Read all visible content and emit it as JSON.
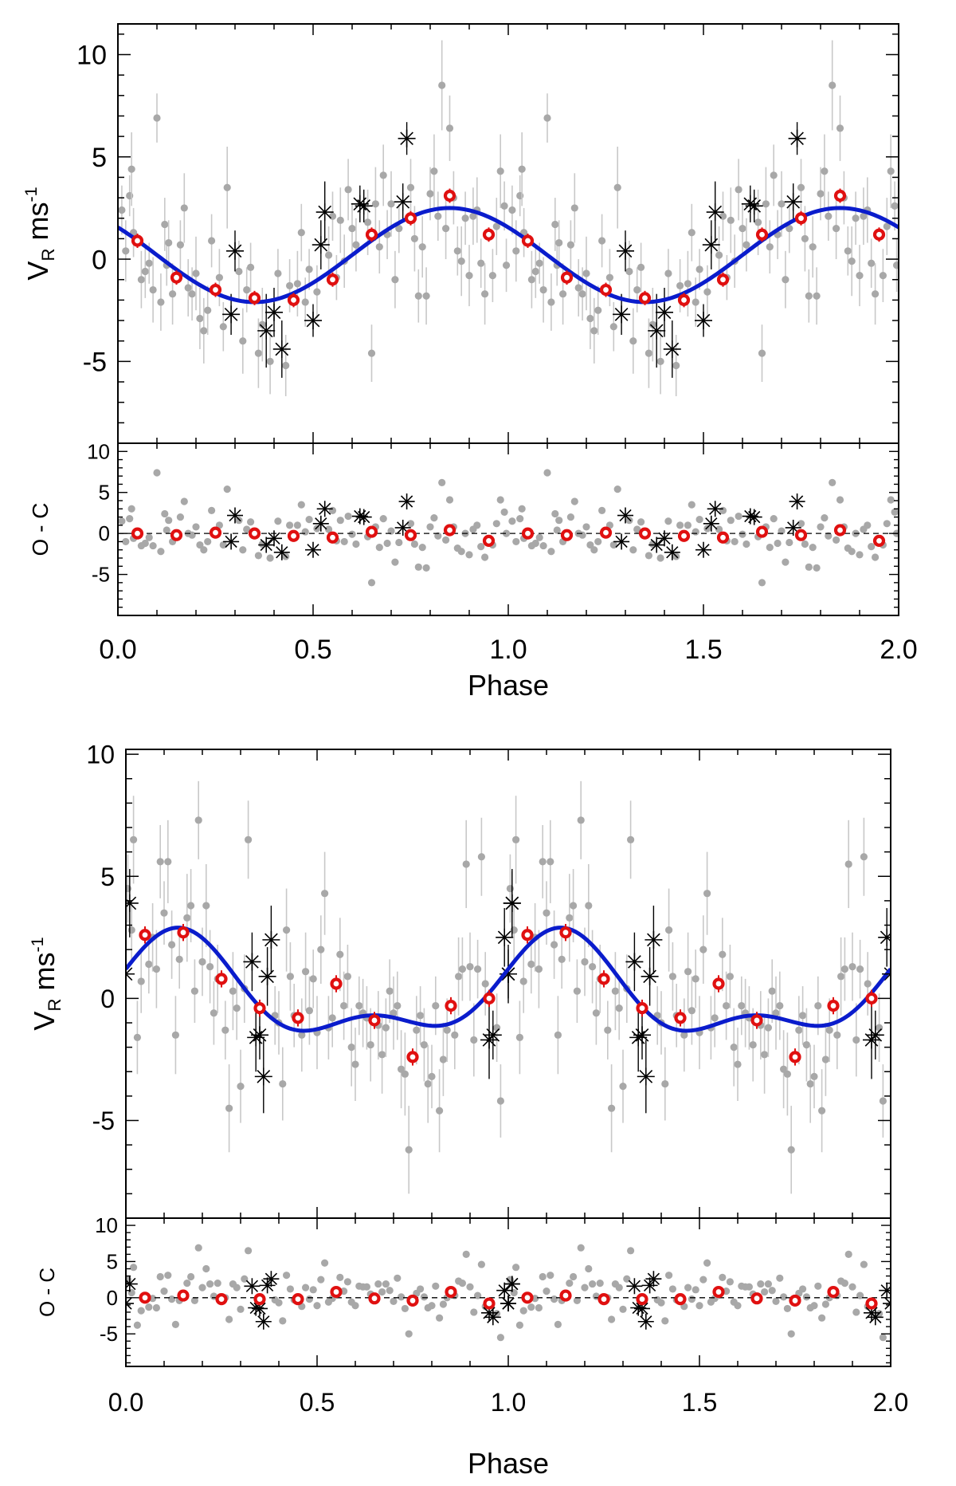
{
  "figure": {
    "description_free": true
  },
  "chart_data": [
    {
      "type": "scatter",
      "panel": "top",
      "xlabel": "Phase",
      "ylabel_main": "V",
      "ylabel_sub": "R",
      "ylabel_unit": " ms",
      "ylabel_sup": "-1",
      "resid_label": "O - C",
      "xlim": [
        0,
        2
      ],
      "ylim": [
        -9,
        11.5
      ],
      "resid_ylim": [
        -10,
        11
      ],
      "xticks": [
        0.0,
        0.5,
        1.0,
        1.5,
        2.0
      ],
      "xtick_labels": [
        "0.0",
        "0.5",
        "1.0",
        "1.5",
        "2.0"
      ],
      "yticks": [
        -5,
        0,
        5,
        10
      ],
      "ytick_labels": [
        "-5",
        "0",
        "5",
        "10"
      ],
      "resid_yticks": [
        -5,
        0,
        5,
        10
      ],
      "resid_ytick_labels": [
        "-5",
        "0",
        "5",
        "10"
      ],
      "model": {
        "name": "Keplerian fit",
        "color": "#0a1ccc",
        "offset": 0.2,
        "harmonics": [
          {
            "amp": 2.3,
            "mult": 1,
            "phase0": 0.6
          }
        ]
      },
      "binned": {
        "color": "#e01010",
        "x": [
          0.05,
          0.15,
          0.25,
          0.35,
          0.45,
          0.55,
          0.65,
          0.75,
          0.85,
          0.95
        ],
        "y": [
          0.9,
          -0.9,
          -1.5,
          -1.9,
          -2.0,
          -1.0,
          1.2,
          2.0,
          3.1,
          1.2
        ],
        "resid": [
          0.0,
          -0.2,
          0.1,
          0.0,
          -0.3,
          -0.5,
          0.2,
          -0.2,
          0.4,
          -0.9
        ]
      },
      "stars": {
        "x": [
          0.29,
          0.3,
          0.38,
          0.4,
          0.42,
          0.5,
          0.52,
          0.53,
          0.62,
          0.63,
          0.73,
          0.74
        ],
        "y": [
          -2.7,
          0.4,
          -3.5,
          -2.6,
          -4.4,
          -3.0,
          0.7,
          2.3,
          2.7,
          2.6,
          2.8,
          5.9
        ],
        "err": [
          1.0,
          1.0,
          1.8,
          1.2,
          1.4,
          0.8,
          1.2,
          1.5,
          0.9,
          0.8,
          0.9,
          0.8
        ],
        "resid": [
          -1.0,
          2.2,
          -1.4,
          -0.6,
          -2.3,
          -2.0,
          1.2,
          3.0,
          2.1,
          2.0,
          0.7,
          3.9
        ]
      },
      "gray": {
        "color": "#a8a8a8",
        "x": [
          0.01,
          0.02,
          0.03,
          0.035,
          0.04,
          0.06,
          0.07,
          0.08,
          0.09,
          0.1,
          0.11,
          0.12,
          0.125,
          0.13,
          0.14,
          0.16,
          0.17,
          0.18,
          0.19,
          0.2,
          0.21,
          0.22,
          0.23,
          0.24,
          0.26,
          0.27,
          0.28,
          0.31,
          0.32,
          0.33,
          0.34,
          0.36,
          0.37,
          0.39,
          0.41,
          0.43,
          0.44,
          0.46,
          0.47,
          0.48,
          0.49,
          0.51,
          0.54,
          0.55,
          0.56,
          0.57,
          0.58,
          0.59,
          0.6,
          0.61,
          0.64,
          0.65,
          0.66,
          0.67,
          0.68,
          0.69,
          0.7,
          0.71,
          0.72,
          0.75,
          0.76,
          0.77,
          0.78,
          0.79,
          0.8,
          0.81,
          0.82,
          0.83,
          0.84,
          0.85,
          0.86,
          0.87,
          0.88,
          0.89,
          0.9,
          0.91,
          0.92,
          0.93,
          0.94,
          0.96,
          0.97,
          0.98,
          0.99,
          0.995
        ],
        "y": [
          2.4,
          0.4,
          3.1,
          4.4,
          1.3,
          -1.0,
          -0.6,
          -0.2,
          -1.5,
          6.9,
          -2.1,
          1.7,
          -0.3,
          0.8,
          -1.7,
          0.7,
          2.5,
          -1.4,
          -1.7,
          -0.7,
          -2.9,
          -3.5,
          -2.5,
          0.9,
          -0.9,
          -3.3,
          3.5,
          -0.6,
          -4.0,
          -1.5,
          -0.4,
          -4.6,
          -3.2,
          -5.0,
          -0.7,
          -5.2,
          -1.3,
          -1.2,
          1.3,
          -2.1,
          -0.5,
          -1.6,
          0.2,
          2.1,
          -0.9,
          1.9,
          -0.1,
          3.4,
          1.5,
          0.7,
          1.8,
          -4.6,
          2.7,
          0.6,
          4.1,
          1.2,
          2.7,
          -1.0,
          1.5,
          3.5,
          1.0,
          -1.8,
          0.6,
          -1.8,
          3.2,
          4.3,
          2.1,
          8.5,
          1.5,
          6.4,
          3.0,
          0.4,
          -0.1,
          2.0,
          -0.8,
          2.1,
          2.4,
          -0.2,
          -1.7,
          -0.8,
          1.6,
          4.3,
          2.6,
          -0.3
        ],
        "resid": [
          1.5,
          -1.0,
          1.8,
          3.0,
          -0.6,
          -1.5,
          -1.2,
          -0.5,
          -1.5,
          7.4,
          -2.2,
          2.4,
          0.4,
          1.6,
          -1.0,
          2.0,
          3.9,
          0.0,
          -0.2,
          0.8,
          -1.4,
          -2.0,
          -1.0,
          2.8,
          1.0,
          -1.4,
          5.4,
          1.6,
          -2.0,
          0.5,
          1.4,
          -2.7,
          -1.3,
          -3.0,
          1.5,
          -2.8,
          1.0,
          1.0,
          3.5,
          0.2,
          1.7,
          0.6,
          0.5,
          2.8,
          -0.9,
          1.6,
          -1.0,
          2.1,
          -0.1,
          -1.3,
          -0.4,
          -6.0,
          0.8,
          -1.7,
          1.8,
          -1.2,
          0.3,
          -3.5,
          -1.1,
          1.2,
          -1.3,
          -4.1,
          -1.7,
          -4.2,
          0.8,
          1.9,
          -0.3,
          6.2,
          -0.8,
          4.1,
          0.8,
          -1.8,
          -2.2,
          0.0,
          -2.6,
          0.5,
          1.0,
          -1.6,
          -2.9,
          -1.4,
          1.2,
          4.1,
          2.6,
          0.0
        ],
        "err": [
          1.2,
          1.5,
          1.0,
          1.8,
          1.2,
          1.4,
          1.3,
          1.0,
          1.6,
          1.2,
          1.4,
          1.3,
          1.0,
          1.1,
          1.5,
          1.2,
          1.7,
          1.4,
          1.3,
          1.8,
          1.5,
          1.6,
          1.2,
          1.3,
          1.4,
          1.2,
          2.0,
          1.5,
          1.6,
          1.1,
          1.2,
          1.7,
          1.8,
          1.6,
          1.2,
          1.5,
          1.3,
          1.6,
          1.4,
          1.2,
          1.0,
          1.3,
          1.4,
          1.2,
          1.1,
          1.6,
          1.3,
          1.5,
          1.2,
          1.3,
          1.6,
          1.4,
          1.8,
          1.3,
          1.5,
          1.2,
          1.6,
          1.4,
          1.2,
          1.4,
          1.6,
          1.3,
          1.5,
          1.4,
          1.3,
          1.8,
          1.2,
          2.2,
          1.5,
          1.6,
          1.3,
          1.2,
          1.7,
          1.3,
          1.5,
          1.4,
          1.6,
          1.2,
          1.5,
          1.3,
          1.4,
          1.8,
          1.2,
          1.3
        ]
      }
    },
    {
      "type": "scatter",
      "panel": "bottom",
      "xlabel": "Phase",
      "ylabel_main": "V",
      "ylabel_sub": "R",
      "ylabel_unit": " ms",
      "ylabel_sup": "-1",
      "resid_label": "O - C",
      "xlim": [
        0,
        2
      ],
      "ylim": [
        -9,
        10.2
      ],
      "resid_ylim": [
        -9.5,
        11
      ],
      "xticks": [
        0.0,
        0.5,
        1.0,
        1.5,
        2.0
      ],
      "xtick_labels": [
        "0.0",
        "0.5",
        "1.0",
        "1.5",
        "2.0"
      ],
      "yticks": [
        -5,
        0,
        5,
        10
      ],
      "ytick_labels": [
        "-5",
        "0",
        "5",
        "10"
      ],
      "resid_yticks": [
        -5,
        0,
        5,
        10
      ],
      "resid_ytick_labels": [
        "-5",
        "0",
        "5",
        "10"
      ],
      "model": {
        "name": "Keplerian fit",
        "color": "#0a1ccc",
        "offset": 0.15,
        "harmonics": [
          {
            "amp": 1.8,
            "mult": 1,
            "phase0": -0.12
          },
          {
            "amp": 0.95,
            "mult": 2,
            "phase0": 0.03
          }
        ]
      },
      "binned": {
        "color": "#e01010",
        "x": [
          0.05,
          0.15,
          0.25,
          0.35,
          0.45,
          0.55,
          0.65,
          0.75,
          0.85,
          0.95
        ],
        "y": [
          2.6,
          2.7,
          0.8,
          -0.4,
          -0.8,
          0.6,
          -0.9,
          -2.4,
          -0.3,
          0.0
        ],
        "resid": [
          0.0,
          0.3,
          -0.2,
          -0.2,
          -0.2,
          0.8,
          -0.1,
          -0.4,
          0.8,
          -0.8
        ]
      },
      "stars": {
        "x": [
          0.0,
          0.01,
          0.33,
          0.34,
          0.35,
          0.36,
          0.37,
          0.38,
          0.95,
          0.96,
          0.99,
          1.0,
          1.01
        ],
        "y": [
          1.0,
          3.9,
          1.5,
          -1.6,
          -1.5,
          -3.2,
          0.9,
          2.4,
          -1.7,
          -1.5,
          2.5,
          1.0,
          3.9
        ],
        "err": [
          1.2,
          1.4,
          1.2,
          1.4,
          1.0,
          1.5,
          1.2,
          1.4,
          1.6,
          1.0,
          1.2,
          1.0,
          1.3
        ],
        "resid": [
          -0.8,
          1.9,
          1.6,
          -1.4,
          -1.5,
          -3.3,
          1.7,
          2.6,
          -2.1,
          -2.7,
          1.0,
          -0.8,
          1.9
        ]
      },
      "gray": {
        "color": "#a8a8a8",
        "x": [
          0.005,
          0.015,
          0.02,
          0.03,
          0.04,
          0.06,
          0.07,
          0.08,
          0.09,
          0.1,
          0.11,
          0.12,
          0.13,
          0.14,
          0.16,
          0.17,
          0.18,
          0.19,
          0.2,
          0.21,
          0.22,
          0.23,
          0.24,
          0.26,
          0.27,
          0.28,
          0.29,
          0.3,
          0.31,
          0.32,
          0.39,
          0.4,
          0.41,
          0.42,
          0.43,
          0.44,
          0.46,
          0.47,
          0.48,
          0.49,
          0.5,
          0.51,
          0.52,
          0.53,
          0.54,
          0.56,
          0.57,
          0.58,
          0.59,
          0.6,
          0.61,
          0.62,
          0.63,
          0.64,
          0.66,
          0.67,
          0.68,
          0.69,
          0.7,
          0.71,
          0.72,
          0.73,
          0.74,
          0.76,
          0.77,
          0.78,
          0.79,
          0.8,
          0.81,
          0.82,
          0.83,
          0.84,
          0.86,
          0.87,
          0.88,
          0.89,
          0.9,
          0.91,
          0.92,
          0.93,
          0.94,
          0.97,
          0.98
        ],
        "y": [
          4.5,
          2.8,
          6.5,
          -1.6,
          0.7,
          1.4,
          2.5,
          1.2,
          5.6,
          3.5,
          5.6,
          2.2,
          -1.5,
          1.6,
          3.3,
          3.8,
          0.3,
          7.3,
          1.5,
          3.8,
          1.3,
          -0.6,
          0.8,
          -1.3,
          -4.5,
          0.3,
          -0.4,
          -3.6,
          0.4,
          6.5,
          -0.7,
          -1.0,
          -3.5,
          2.8,
          0.9,
          -0.7,
          -1.5,
          1.1,
          -0.5,
          0.8,
          -1.4,
          2.0,
          4.3,
          -1.2,
          -0.8,
          1.8,
          -0.3,
          0.9,
          -2.0,
          -2.7,
          -0.3,
          -0.6,
          -0.8,
          -1.9,
          -1.1,
          -2.3,
          -1.2,
          0.3,
          -0.6,
          -0.3,
          -2.9,
          -3.1,
          -6.2,
          -1.3,
          -0.7,
          -1.9,
          -3.5,
          -3.2,
          -0.3,
          -4.6,
          -2.5,
          -1.3,
          -1.5,
          0.9,
          1.2,
          5.5,
          1.3,
          -1.7,
          1.2,
          5.8,
          0.6,
          -1.2,
          -4.2
        ],
        "resid": [
          2.5,
          0.7,
          4.2,
          -3.8,
          -1.8,
          -1.3,
          -0.1,
          -1.4,
          2.9,
          0.9,
          3.1,
          -0.2,
          -3.7,
          -0.4,
          2.0,
          2.9,
          -0.4,
          6.9,
          1.4,
          4.0,
          1.9,
          0.2,
          2.0,
          0.0,
          -3.0,
          1.9,
          1.4,
          -1.6,
          2.6,
          6.5,
          -0.3,
          -0.7,
          -3.2,
          3.1,
          1.2,
          -0.3,
          -1.2,
          1.4,
          -0.2,
          1.1,
          -1.1,
          2.5,
          4.8,
          -0.6,
          -0.1,
          2.8,
          0.9,
          2.2,
          -0.6,
          -1.1,
          1.6,
          1.5,
          1.5,
          0.5,
          1.9,
          0.8,
          1.9,
          1.0,
          -0.5,
          2.7,
          0.1,
          -1.5,
          -5.0,
          0.6,
          1.2,
          0.1,
          -1.4,
          -1.1,
          1.6,
          -2.8,
          -0.9,
          0.0,
          0.3,
          2.3,
          2.0,
          6.0,
          1.5,
          -2.0,
          0.3,
          4.6,
          -1.2,
          -2.2,
          -5.5
        ],
        "err": [
          1.4,
          1.2,
          1.8,
          1.5,
          1.3,
          1.2,
          1.4,
          1.6,
          1.5,
          1.3,
          1.7,
          1.4,
          1.6,
          1.2,
          1.8,
          1.5,
          1.3,
          1.6,
          1.4,
          1.7,
          1.5,
          1.3,
          1.4,
          1.2,
          1.8,
          1.6,
          1.3,
          1.5,
          1.4,
          1.6,
          1.2,
          1.3,
          1.5,
          1.7,
          1.4,
          1.3,
          1.5,
          1.6,
          1.4,
          1.2,
          1.5,
          1.4,
          1.7,
          1.3,
          1.2,
          1.5,
          1.4,
          1.3,
          1.6,
          1.5,
          1.2,
          1.4,
          1.3,
          1.5,
          1.4,
          1.6,
          1.2,
          1.3,
          1.5,
          1.4,
          1.6,
          1.7,
          1.8,
          1.4,
          1.2,
          1.5,
          1.6,
          1.3,
          1.2,
          1.7,
          1.5,
          1.3,
          1.4,
          1.6,
          1.3,
          1.8,
          1.4,
          1.5,
          1.2,
          1.6,
          1.3,
          1.4,
          1.5
        ]
      }
    }
  ]
}
